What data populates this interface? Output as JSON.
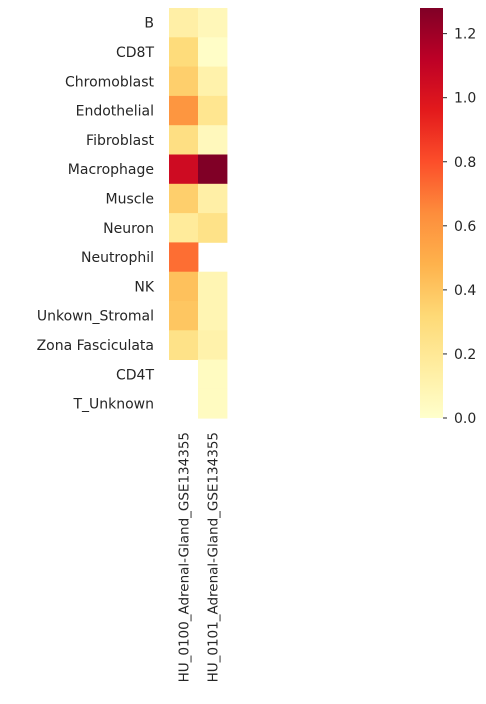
{
  "chart_data": {
    "type": "heatmap",
    "rows": [
      "B",
      "CD8T",
      "Chromoblast",
      "Endothelial",
      "Fibroblast",
      "Macrophage",
      "Muscle",
      "Neuron",
      "Neutrophil",
      "NK",
      "Unkown_Stromal",
      "Zona Fasciculata",
      "CD4T",
      "T_Unknown"
    ],
    "columns": [
      "HU_0100_Adrenal-Gland_GSE134355",
      "HU_0101_Adrenal-Gland_GSE134355"
    ],
    "values": [
      [
        0.14,
        0.07
      ],
      [
        0.3,
        0.02
      ],
      [
        0.36,
        0.12
      ],
      [
        0.6,
        0.22
      ],
      [
        0.27,
        0.06
      ],
      [
        1.05,
        1.28
      ],
      [
        0.36,
        0.14
      ],
      [
        0.18,
        0.25
      ],
      [
        0.72,
        null
      ],
      [
        0.42,
        0.09
      ],
      [
        0.4,
        0.09
      ],
      [
        0.25,
        0.12
      ],
      [
        null,
        0.04
      ],
      [
        null,
        0.04
      ]
    ],
    "colorbar": {
      "min": 0.0,
      "max": 1.28,
      "ticks": [
        "0.0",
        "0.2",
        "0.4",
        "0.6",
        "0.8",
        "1.0",
        "1.2"
      ],
      "colormap": "YlOrRd"
    },
    "title": "",
    "xlabel": "",
    "ylabel": ""
  }
}
